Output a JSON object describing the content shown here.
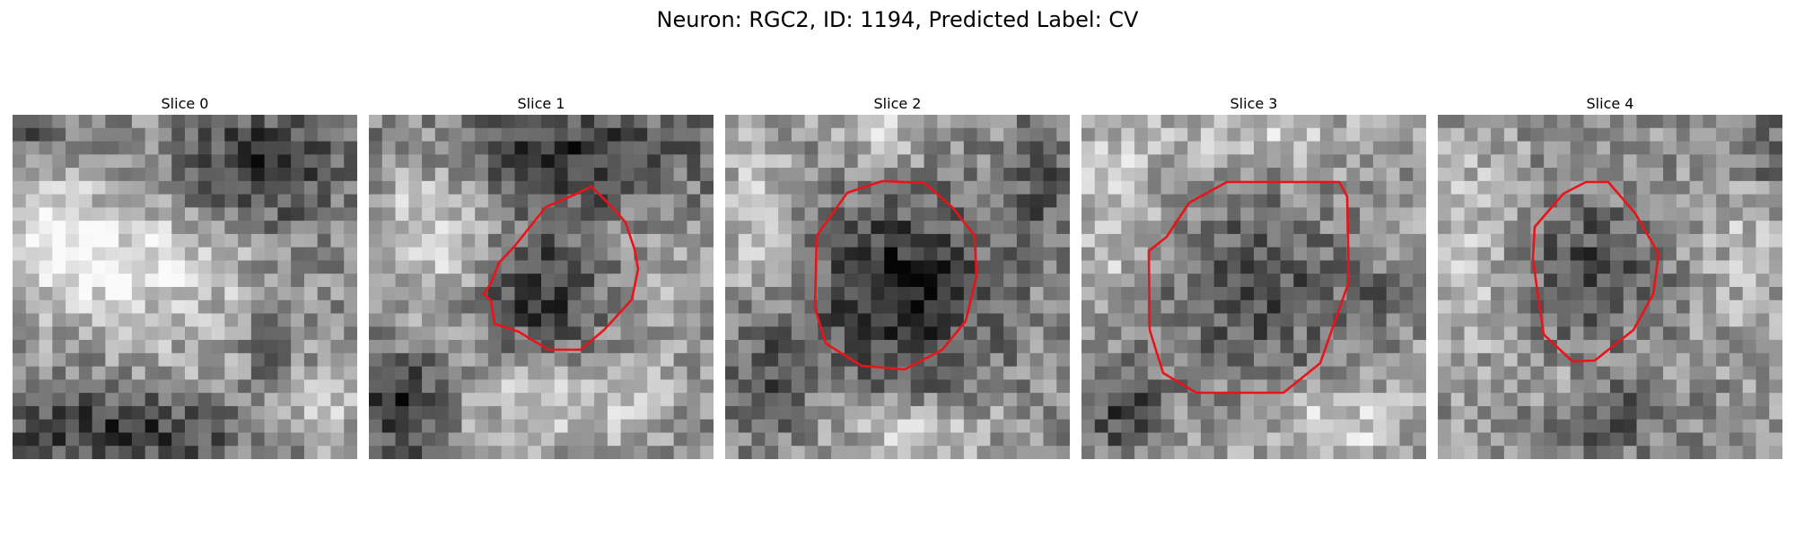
{
  "figure": {
    "title": "Neuron: RGC2, ID: 1194, Predicted Label: CV"
  },
  "panels": [
    {
      "title": "Slice 0",
      "has_contour": false
    },
    {
      "title": "Slice 1",
      "has_contour": true
    },
    {
      "title": "Slice 2",
      "has_contour": true
    },
    {
      "title": "Slice 3",
      "has_contour": true
    },
    {
      "title": "Slice 4",
      "has_contour": true
    }
  ],
  "colors": {
    "contour": "#e8141a",
    "background": "#ffffff"
  },
  "image": {
    "colormap": "grayscale",
    "grid_size": 26
  }
}
